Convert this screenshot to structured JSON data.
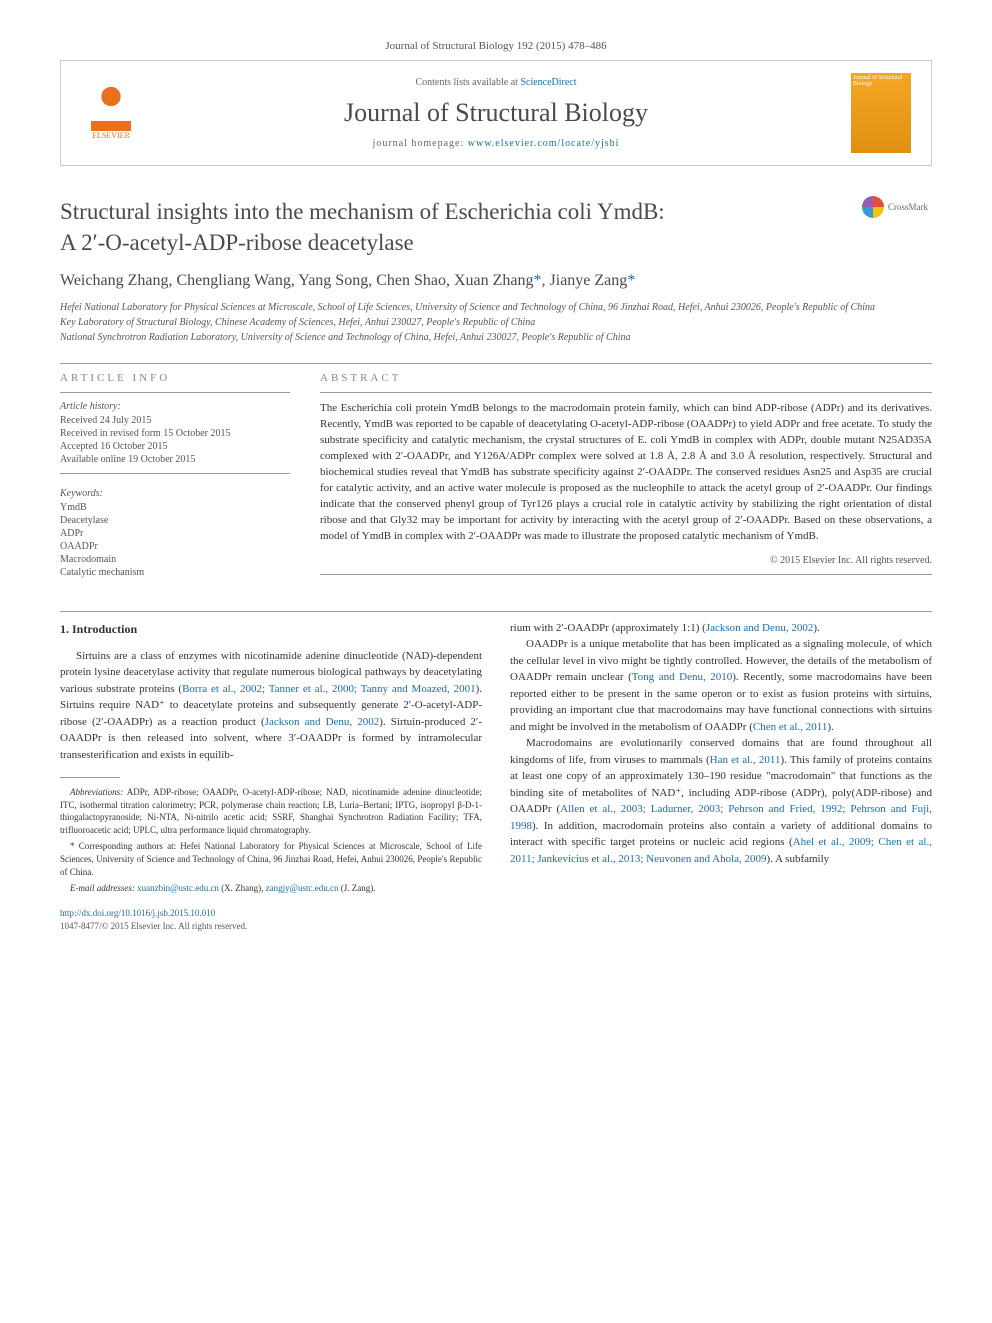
{
  "journal_ref": "Journal of Structural Biology 192 (2015) 478–486",
  "header": {
    "contents_prefix": "Contents lists available at ",
    "contents_link": "ScienceDirect",
    "journal_name": "Journal of Structural Biology",
    "homepage_prefix": "journal homepage: ",
    "homepage_url": "www.elsevier.com/locate/yjsbi",
    "elsevier_label": "ELSEVIER",
    "cover_label": "Journal of Structural Biology"
  },
  "crossmark_label": "CrossMark",
  "title_line1": "Structural insights into the mechanism of Escherichia coli YmdB:",
  "title_line2": "A 2′-O-acetyl-ADP-ribose deacetylase",
  "authors": "Weichang Zhang, Chengliang Wang, Yang Song, Chen Shao, Xuan Zhang",
  "authors_corr1": "*",
  "authors_sep": ", Jianye Zang",
  "authors_corr2": "*",
  "affiliations": [
    "Hefei National Laboratory for Physical Sciences at Microscale, School of Life Sciences, University of Science and Technology of China, 96 Jinzhai Road, Hefei, Anhui 230026, People's Republic of China",
    "Key Laboratory of Structural Biology, Chinese Academy of Sciences, Hefei, Anhui 230027, People's Republic of China",
    "National Synchrotron Radiation Laboratory, University of Science and Technology of China, Hefei, Anhui 230027, People's Republic of China"
  ],
  "article_info_heading": "ARTICLE INFO",
  "abstract_heading": "ABSTRACT",
  "history_label": "Article history:",
  "history": [
    "Received 24 July 2015",
    "Received in revised form 15 October 2015",
    "Accepted 16 October 2015",
    "Available online 19 October 2015"
  ],
  "keywords_label": "Keywords:",
  "keywords": [
    "YmdB",
    "Deacetylase",
    "ADPr",
    "OAADPr",
    "Macrodomain",
    "Catalytic mechanism"
  ],
  "abstract": "The Escherichia coli protein YmdB belongs to the macrodomain protein family, which can bind ADP-ribose (ADPr) and its derivatives. Recently, YmdB was reported to be capable of deacetylating O-acetyl-ADP-ribose (OAADPr) to yield ADPr and free acetate. To study the substrate specificity and catalytic mechanism, the crystal structures of E. coli YmdB in complex with ADPr, double mutant N25AD35A complexed with 2′-OAADPr, and Y126A/ADPr complex were solved at 1.8 Å, 2.8 Å and 3.0 Å resolution, respectively. Structural and biochemical studies reveal that YmdB has substrate specificity against 2′-OAADPr. The conserved residues Asn25 and Asp35 are crucial for catalytic activity, and an active water molecule is proposed as the nucleophile to attack the acetyl group of 2′-OAADPr. Our findings indicate that the conserved phenyl group of Tyr126 plays a crucial role in catalytic activity by stabilizing the right orientation of distal ribose and that Gly32 may be important for activity by interacting with the acetyl group of 2′-OAADPr. Based on these observations, a model of YmdB in complex with 2′-OAADPr was made to illustrate the proposed catalytic mechanism of YmdB.",
  "copyright": "© 2015 Elsevier Inc. All rights reserved.",
  "section1_heading": "1. Introduction",
  "col1": {
    "p1a": "Sirtuins are a class of enzymes with nicotinamide adenine dinucleotide (NAD)-dependent protein lysine deacetylase activity that regulate numerous biological pathways by deacetylating various substrate proteins (",
    "p1_ref1": "Borra et al., 2002; Tanner et al., 2000; Tanny and Moazed, 2001",
    "p1b": "). Sirtuins require NAD⁺ to deacetylate proteins and subsequently generate 2′-O-acetyl-ADP-ribose (2′-OAADPr) as a reaction product (",
    "p1_ref2": "Jackson and Denu, 2002",
    "p1c": "). Sirtuin-produced 2′-OAADPr is then released into solvent, where 3′-OAADPr is formed by intramolecular transesterification and exists in equilib-"
  },
  "col2": {
    "p1a": "rium with 2′-OAADPr (approximately 1:1) (",
    "p1_ref1": "Jackson and Denu, 2002",
    "p1b": ").",
    "p2a": "OAADPr is a unique metabolite that has been implicated as a signaling molecule, of which the cellular level in vivo might be tightly controlled. However, the details of the metabolism of OAADPr remain unclear (",
    "p2_ref1": "Tong and Denu, 2010",
    "p2b": "). Recently, some macrodomains have been reported either to be present in the same operon or to exist as fusion proteins with sirtuins, providing an important clue that macrodomains may have functional connections with sirtuins and might be involved in the metabolism of OAADPr (",
    "p2_ref2": "Chen et al., 2011",
    "p2c": ").",
    "p3a": "Macrodomains are evolutionarily conserved domains that are found throughout all kingdoms of life, from viruses to mammals (",
    "p3_ref1": "Han et al., 2011",
    "p3b": "). This family of proteins contains at least one copy of an approximately 130–190 residue \"macrodomain\" that functions as the binding site of metabolites of NAD⁺, including ADP-ribose (ADPr), poly(ADP-ribose) and OAADPr (",
    "p3_ref2": "Allen et al., 2003; Ladurner, 2003; Pehrson and Fried, 1992; Pehrson and Fuji, 1998",
    "p3c": "). In addition, macrodomain proteins also contain a variety of additional domains to interact with specific target proteins or nucleic acid regions (",
    "p3_ref3": "Ahel et al., 2009; Chen et al., 2011; Jankevicius et al., 2013; Neuvonen and Ahola, 2009",
    "p3d": "). A subfamily"
  },
  "footnotes": {
    "abbrev_label": "Abbreviations:",
    "abbrev": " ADPr, ADP-ribose; OAADPr, O-acetyl-ADP-ribose; NAD, nicotinamide adenine dinucleotide; ITC, isothermal titration calorimetry; PCR, polymerase chain reaction; LB, Luria–Bertani; IPTG, isopropyl β-D-1-thiogalactopyranoside; Ni-NTA, Ni-nitrilo acetic acid; SSRF, Shanghai Synchrotron Radiation Facility; TFA, trifluoroacetic acid; UPLC, ultra performance liquid chromatography.",
    "corr": "* Corresponding authors at: Hefei National Laboratory for Physical Sciences at Microscale, School of Life Sciences, University of Science and Technology of China, 96 Jinzhai Road, Hefei, Anhui 230026, People's Republic of China.",
    "email_label": "E-mail addresses:",
    "email1": "xuanzbin@ustc.edu.cn",
    "email1_who": " (X. Zhang), ",
    "email2": "zangjy@ustc.edu.cn",
    "email2_who": " (J. Zang)."
  },
  "doi": {
    "url": "http://dx.doi.org/10.1016/j.jsb.2015.10.010",
    "issn": "1047-8477/© 2015 Elsevier Inc. All rights reserved."
  },
  "colors": {
    "link": "#1b6ca8",
    "elsevier": "#e9711c",
    "text": "#333333",
    "muted": "#555555",
    "rule": "#999999"
  }
}
